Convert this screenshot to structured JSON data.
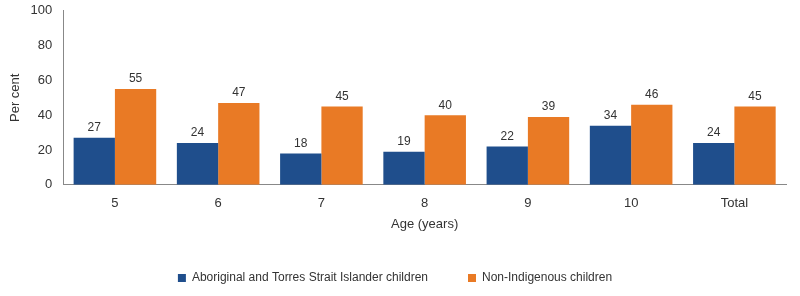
{
  "chart_data": {
    "type": "bar",
    "x_label": "Age (years)",
    "y_label": "Per cent",
    "categories": [
      "5",
      "6",
      "7",
      "8",
      "9",
      "10",
      "Total"
    ],
    "series": [
      {
        "name": "Aboriginal and Torres Strait Islander children",
        "color": "#1f4e8c",
        "values": [
          27,
          24,
          18,
          19,
          22,
          34,
          24
        ]
      },
      {
        "name": "Non-Indigenous children",
        "color": "#e97a25",
        "values": [
          55,
          47,
          45,
          40,
          39,
          46,
          45
        ]
      }
    ],
    "ylim": [
      0,
      100
    ],
    "yticks": [
      0,
      20,
      40,
      60,
      80,
      100
    ],
    "grid": false,
    "legend": "bottom",
    "data_labels": true
  }
}
